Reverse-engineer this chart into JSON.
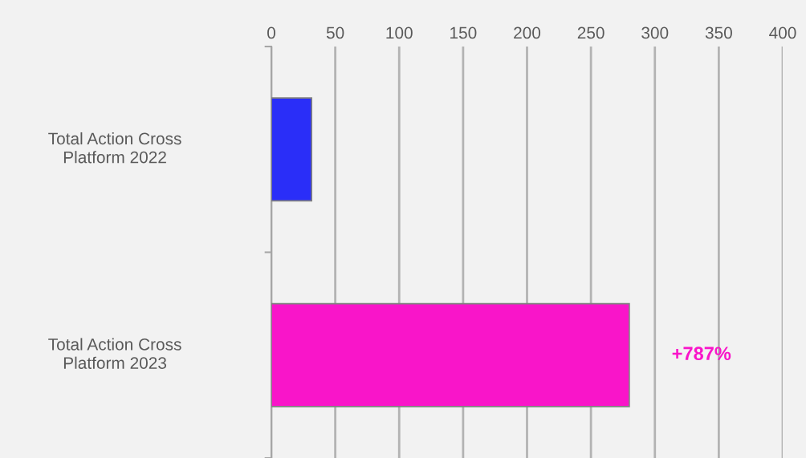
{
  "chart_data": {
    "type": "bar",
    "orientation": "horizontal",
    "categories": [
      "Total Action Cross\nPlatform 2022",
      "Total Action Cross\nPlatform 2023"
    ],
    "values": [
      31.5,
      280
    ],
    "colors": [
      "#2a2ef8",
      "#f915c9"
    ],
    "xlim": [
      0,
      400
    ],
    "xticks": [
      0,
      50,
      100,
      150,
      200,
      250,
      300,
      350,
      400
    ],
    "grid": "x",
    "annotations": [
      "+787%"
    ]
  }
}
